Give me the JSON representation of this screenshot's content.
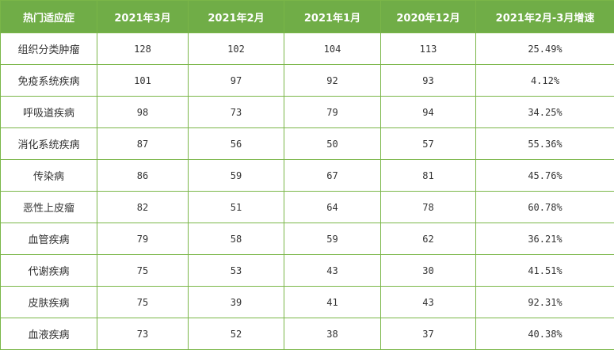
{
  "table": {
    "header": [
      "热门适应症",
      "2021年3月",
      "2021年2月",
      "2021年1月",
      "2020年12月",
      "2021年2月-3月增速"
    ],
    "rows": [
      [
        "组织分类肿瘤",
        "128",
        "102",
        "104",
        "113",
        "25.49%"
      ],
      [
        "免疫系统疾病",
        "101",
        "97",
        "92",
        "93",
        "4.12%"
      ],
      [
        "呼吸道疾病",
        "98",
        "73",
        "79",
        "94",
        "34.25%"
      ],
      [
        "消化系统疾病",
        "87",
        "56",
        "50",
        "57",
        "55.36%"
      ],
      [
        "传染病",
        "86",
        "59",
        "67",
        "81",
        "45.76%"
      ],
      [
        "恶性上皮瘤",
        "82",
        "51",
        "64",
        "78",
        "60.78%"
      ],
      [
        "血管疾病",
        "79",
        "58",
        "59",
        "62",
        "36.21%"
      ],
      [
        "代谢疾病",
        "75",
        "53",
        "43",
        "30",
        "41.51%"
      ],
      [
        "皮肤疾病",
        "75",
        "39",
        "41",
        "43",
        "92.31%"
      ],
      [
        "血液疾病",
        "73",
        "52",
        "38",
        "37",
        "40.38%"
      ]
    ]
  }
}
